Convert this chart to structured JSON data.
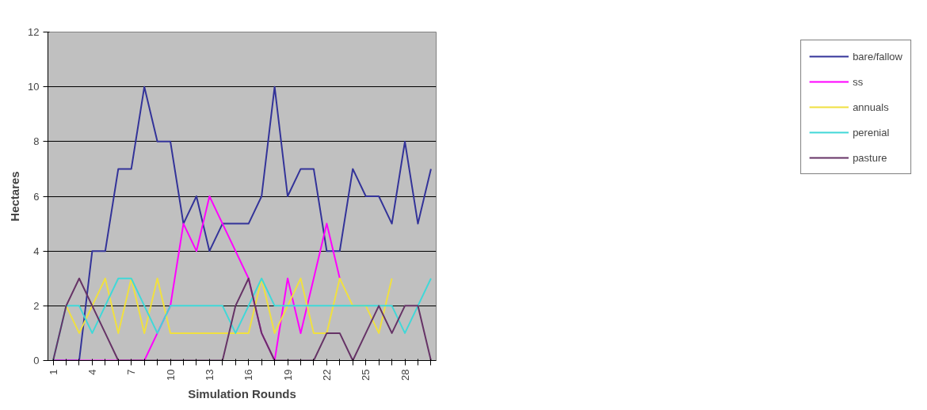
{
  "chart_data": {
    "type": "line",
    "xlabel": "Simulation Rounds",
    "ylabel": "Hectares",
    "categories": [
      "1",
      null,
      null,
      "4",
      null,
      null,
      "7",
      null,
      null,
      "10",
      null,
      null,
      "13",
      null,
      null,
      "16",
      null,
      null,
      "19",
      null,
      null,
      "22",
      null,
      null,
      "25",
      null,
      null,
      "28",
      null,
      null
    ],
    "series": [
      {
        "name": "bare/fallow",
        "color": "#333399",
        "values": [
          0,
          0,
          0,
          4,
          4,
          7,
          7,
          10,
          8,
          8,
          5,
          6,
          4,
          5,
          5,
          5,
          6,
          10,
          6,
          7,
          7,
          4,
          4,
          7,
          6,
          6,
          5,
          8,
          5,
          7
        ]
      },
      {
        "name": "ss",
        "color": "#ff00ff",
        "values": [
          0,
          0,
          0,
          0,
          0,
          0,
          0,
          0,
          1,
          2,
          5,
          4,
          6,
          5,
          4,
          3,
          1,
          0,
          3,
          1,
          3,
          5,
          3,
          null,
          null,
          null,
          null,
          null,
          null,
          null
        ]
      },
      {
        "name": "annuals",
        "color": "#f0e040",
        "values": [
          null,
          2,
          1,
          2,
          3,
          1,
          3,
          1,
          3,
          1,
          1,
          1,
          1,
          1,
          1,
          1,
          3,
          1,
          2,
          3,
          1,
          1,
          3,
          2,
          2,
          1,
          3,
          null,
          null,
          null
        ]
      },
      {
        "name": "perenial",
        "color": "#40d8d8",
        "values": [
          0,
          2,
          2,
          1,
          2,
          3,
          3,
          2,
          1,
          2,
          2,
          2,
          2,
          2,
          1,
          2,
          3,
          2,
          2,
          2,
          2,
          2,
          2,
          2,
          2,
          2,
          2,
          1,
          2,
          3
        ]
      },
      {
        "name": "pasture",
        "color": "#663366",
        "values": [
          0,
          2,
          3,
          2,
          1,
          0,
          0,
          0,
          0,
          0,
          0,
          0,
          0,
          0,
          2,
          3,
          1,
          0,
          0,
          0,
          0,
          1,
          1,
          0,
          1,
          2,
          1,
          2,
          2,
          0
        ]
      }
    ],
    "ylim": [
      0,
      12
    ],
    "yticks": [
      0,
      2,
      4,
      6,
      8,
      10,
      12
    ],
    "grid": "y",
    "legend": "right",
    "marker": "none",
    "line_style": "solid"
  }
}
